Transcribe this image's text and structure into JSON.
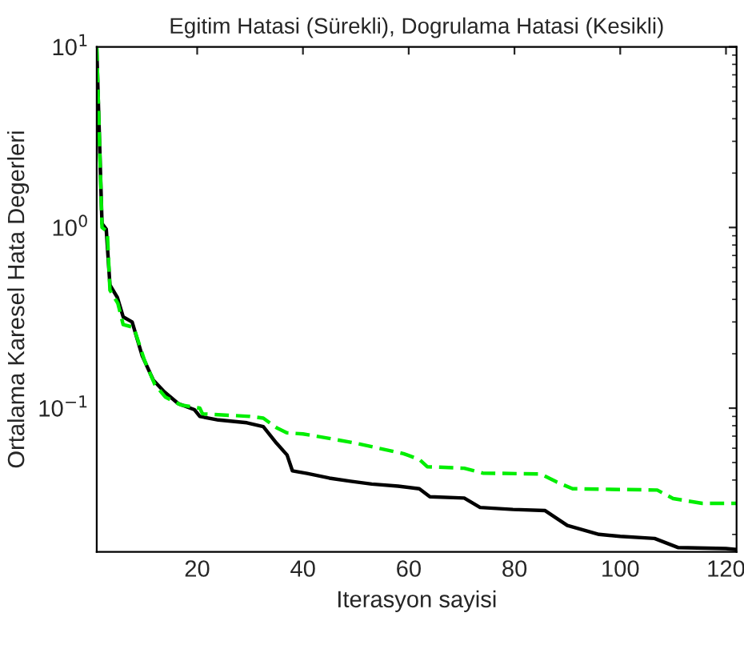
{
  "chart_data": {
    "type": "line",
    "title": "Egitim Hatasi (Sürekli), Dogrulama Hatasi (Kesikli)",
    "xlabel": "Iterasyon sayisi",
    "ylabel": "Ortalama Karesel Hata Degerleri",
    "log": "y",
    "grid": false,
    "legend": false,
    "xlim": [
      1,
      122
    ],
    "xticks": [
      20,
      40,
      60,
      80,
      100,
      120
    ],
    "ylim": [
      0.016,
      10
    ],
    "yticks": [
      {
        "value": 0.1,
        "label": "10$^{−1}$"
      },
      {
        "value": 1,
        "label": "10$^{0}$"
      },
      {
        "value": 10,
        "label": "10$^{1}$"
      }
    ],
    "series": [
      {
        "color": "#000000",
        "line_style": "solid",
        "x": [
          1,
          2,
          2.8,
          3.5,
          4.9,
          6,
          7.7,
          9.6,
          11.7,
          13.8,
          16.4,
          19.5,
          20.5,
          24,
          29.4,
          32.5,
          35,
          37,
          38,
          40.8,
          45,
          49,
          53,
          58,
          62,
          64,
          70.5,
          73.5,
          79.7,
          85.8,
          90,
          96,
          100,
          106.5,
          111,
          120,
          122
        ],
        "values": [
          9.8,
          1.05,
          0.98,
          0.48,
          0.41,
          0.32,
          0.3,
          0.195,
          0.143,
          0.123,
          0.106,
          0.098,
          0.09,
          0.086,
          0.083,
          0.079,
          0.064,
          0.055,
          0.045,
          0.0435,
          0.041,
          0.0394,
          0.038,
          0.037,
          0.0358,
          0.0323,
          0.0318,
          0.0282,
          0.0275,
          0.0271,
          0.0224,
          0.02,
          0.0195,
          0.019,
          0.0169,
          0.0167,
          0.0165
        ]
      },
      {
        "color": "#00ee00",
        "line_style": "dashed",
        "x": [
          1,
          2,
          3,
          3.5,
          5,
          6,
          8,
          10,
          12,
          14,
          17,
          20.5,
          21,
          30,
          32.5,
          35,
          37,
          40,
          45,
          50,
          59,
          62,
          63.5,
          70.5,
          74,
          85,
          88,
          91,
          107,
          110,
          115.5,
          122
        ],
        "values": [
          10,
          1.0,
          0.95,
          0.45,
          0.38,
          0.29,
          0.28,
          0.185,
          0.135,
          0.115,
          0.104,
          0.1,
          0.093,
          0.09,
          0.088,
          0.078,
          0.073,
          0.072,
          0.068,
          0.064,
          0.056,
          0.052,
          0.0474,
          0.0465,
          0.0437,
          0.0432,
          0.039,
          0.0358,
          0.0352,
          0.0316,
          0.0297,
          0.0297
        ]
      }
    ]
  }
}
